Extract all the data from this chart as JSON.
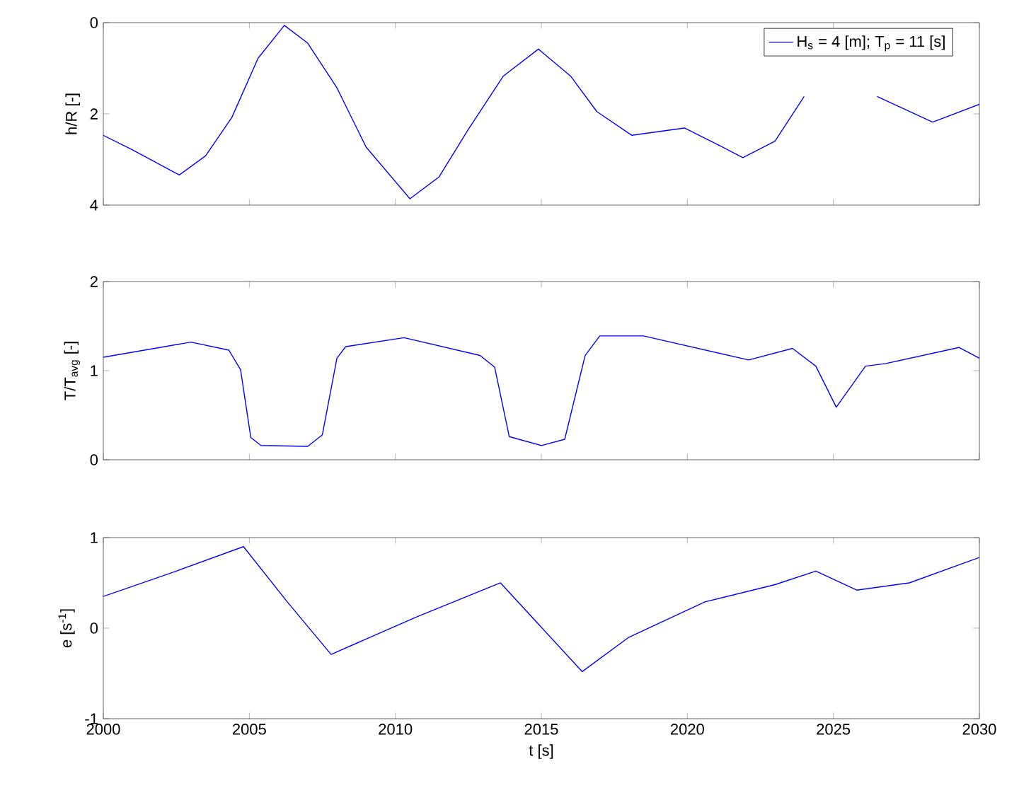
{
  "chart_data": [
    {
      "type": "line",
      "ylabel": "h/R [-]",
      "xlim": [
        2000,
        2030
      ],
      "ylim": [
        4,
        0
      ],
      "xticks": [
        2000,
        2005,
        2010,
        2015,
        2020,
        2025,
        2030
      ],
      "yticks": [
        0,
        2,
        4
      ],
      "tick_labels": "y",
      "legend": "top right",
      "x": [
        2000,
        2001,
        2002.6,
        2003.5,
        2004.4,
        2005.3,
        2006.2,
        2007,
        2008,
        2009,
        2010.5,
        2011.5,
        2012.5,
        2013.7,
        2014.9,
        2016,
        2016.9,
        2018.1,
        2019.9,
        2021,
        2021.9,
        2023,
        2024,
        2025.2,
        2026.5,
        2028.4,
        2030
      ],
      "series": [
        {
          "name": "H$_{s}$ = 4 [m]; T$_{p}$ = 11 [s]",
          "color": "#0000ff",
          "values": [
            2.47,
            2.79,
            3.34,
            2.92,
            2.08,
            0.78,
            0.06,
            0.45,
            1.43,
            2.73,
            3.86,
            3.38,
            2.34,
            1.17,
            0.58,
            1.17,
            1.95,
            2.47,
            2.31,
            2.66,
            2.96,
            2.6,
            1.62,
            null,
            1.62,
            2.18,
            1.79
          ]
        }
      ]
    },
    {
      "type": "line",
      "ylabel": "T/T$_{avg}$ [-]",
      "xlim": [
        2000,
        2030
      ],
      "ylim": [
        0,
        2
      ],
      "xticks": [
        2000,
        2005,
        2010,
        2015,
        2020,
        2025,
        2030
      ],
      "yticks": [
        0,
        1,
        2
      ],
      "tick_labels": "y",
      "x": [
        2000,
        2003,
        2004.3,
        2004.7,
        2005.05,
        2005.4,
        2007,
        2007.5,
        2008,
        2008.3,
        2010.3,
        2012.9,
        2013.4,
        2013.9,
        2015,
        2015.8,
        2016.5,
        2017,
        2018.5,
        2022.1,
        2023.6,
        2024.4,
        2025.1,
        2026.1,
        2026.8,
        2029.3,
        2030
      ],
      "series": [
        {
          "color": "#0000ff",
          "values": [
            1.15,
            1.32,
            1.23,
            1.01,
            0.25,
            0.16,
            0.15,
            0.28,
            1.14,
            1.27,
            1.37,
            1.17,
            1.04,
            0.26,
            0.16,
            0.23,
            1.17,
            1.39,
            1.39,
            1.12,
            1.25,
            1.05,
            0.59,
            1.05,
            1.08,
            1.26,
            1.14
          ]
        }
      ]
    },
    {
      "type": "line",
      "xlabel": "t [s]",
      "ylabel": "e [s$^{-1}$]",
      "xlim": [
        2000,
        2030
      ],
      "ylim": [
        -1,
        1
      ],
      "xticks": [
        2000,
        2005,
        2010,
        2015,
        2020,
        2025,
        2030
      ],
      "yticks": [
        -1,
        0,
        1
      ],
      "x": [
        2000,
        2002.5,
        2004.8,
        2006.3,
        2007.8,
        2010.7,
        2013.6,
        2016.4,
        2018,
        2020.6,
        2023,
        2024.4,
        2025.8,
        2027.6,
        2030
      ],
      "series": [
        {
          "color": "#0000ff",
          "values": [
            0.35,
            0.63,
            0.9,
            0.29,
            -0.29,
            0.12,
            0.5,
            -0.48,
            -0.1,
            0.29,
            0.48,
            0.63,
            0.42,
            0.5,
            0.78
          ]
        }
      ]
    }
  ]
}
